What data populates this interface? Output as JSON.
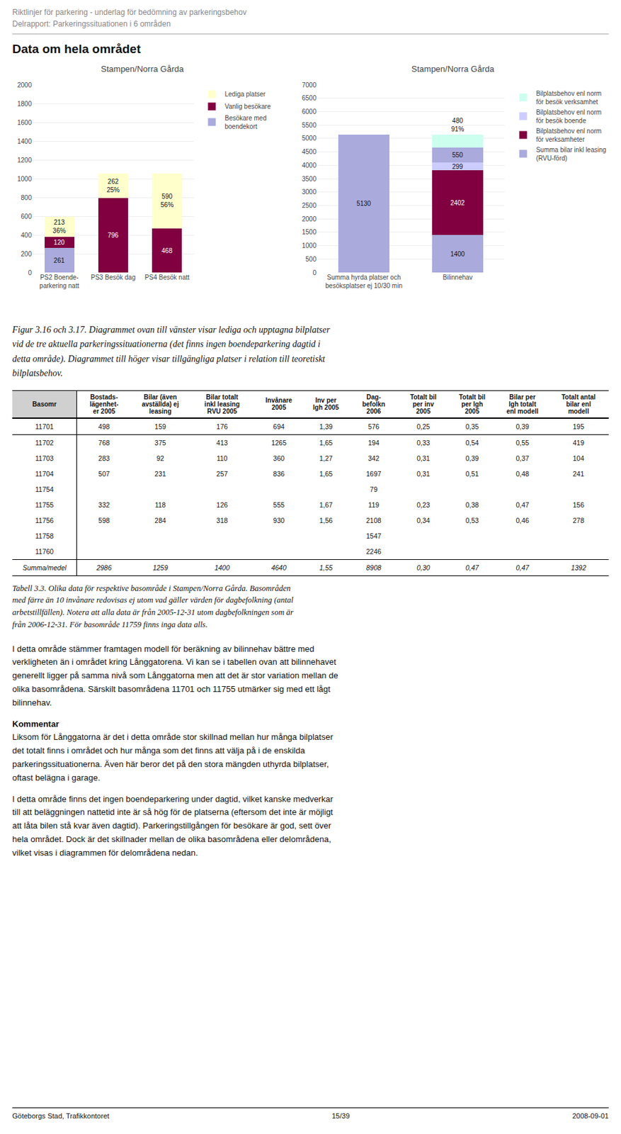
{
  "header_lines": [
    "Riktlinjer för parkering - underlag för bedömning av parkeringsbehov",
    "Delrapport: Parkeringssituationen i 6 områden"
  ],
  "section_title": "Data om hela området",
  "chart_data": [
    {
      "type": "bar",
      "title": "Stampen/Norra Gårda",
      "stacked": true,
      "data_labels": true,
      "grid": true,
      "legend": "right",
      "categories": [
        "PS2 Boende-\nparkering natt",
        "PS3 Besök dag",
        "PS4 Besök natt"
      ],
      "series": [
        {
          "name": "Besökare med\nboendekort",
          "color": "#aaaadd",
          "values": [
            261,
            0,
            0
          ]
        },
        {
          "name": "Vanlig besökare",
          "color": "#800040",
          "values": [
            120,
            796,
            468
          ]
        },
        {
          "name": "Lediga platser",
          "color": "#ffffcc",
          "values": [
            213,
            262,
            590
          ],
          "annotations": [
            "36%",
            "25%",
            "56%"
          ]
        }
      ],
      "ylim": [
        0,
        2000
      ],
      "yticks": [
        0,
        200,
        400,
        600,
        800,
        1000,
        1200,
        1400,
        1600,
        1800,
        2000
      ]
    },
    {
      "type": "bar",
      "title": "Stampen/Norra Gårda",
      "stacked": true,
      "data_labels": true,
      "grid": true,
      "legend": "right",
      "categories": [
        "Summa hyrda platser och\nbesöksplatser ej 10/30 min",
        "Bilinnehav"
      ],
      "series": [
        {
          "name": "Summa bilar inkl leasing\n(RVU-förd)",
          "color": "#aaaadd",
          "values": [
            5130,
            1400
          ]
        },
        {
          "name": "Bilplatsbehov enl norm\nför verksamheter",
          "color": "#800040",
          "values": [
            0,
            2402
          ]
        },
        {
          "name": "Bilplatsbehov enl norm\nför besök boende",
          "color": "#ccccff",
          "values": [
            0,
            299
          ]
        },
        {
          "color": "#aaaadd",
          "values": [
            0,
            550
          ]
        },
        {
          "name": "Bilplatsbehov enl norm\nför besök verksamhet",
          "color": "#ccffee",
          "values": [
            0,
            480
          ],
          "annotations": [
            null,
            "91%"
          ]
        }
      ],
      "ylim": [
        0,
        7000
      ],
      "yticks": [
        0,
        500,
        1000,
        1500,
        2000,
        2500,
        3000,
        3500,
        4000,
        4500,
        5000,
        5500,
        6000,
        6500,
        7000
      ]
    }
  ],
  "caption": "Figur 3.16 och 3.17. Diagrammet ovan till vänster visar lediga och upptagna bilplatser\nvid de tre aktuella parkeringssituationerna (det finns ingen boendeparkering dagtid i\ndetta område). Diagrammet till höger visar tillgängliga platser i relation till teoretiskt\nbilplatsbehov.",
  "table": {
    "headers": [
      "Basomr",
      "Bostads-\nlägenhet-\ner 2005",
      "Bilar (även\navställda) ej\nleasing",
      "Bilar totalt\ninkl leasing\nRVU 2005",
      "Invånare\n2005",
      "Inv per\nlgh 2005",
      "Dag-\nbefolkn\n2006",
      "Totalt bil\nper inv\n2005",
      "Totalt bil\nper lgh\n2005",
      "Bilar per\nlgh totalt\nenl modell",
      "Totalt antal\nbilar enl\nmodell"
    ],
    "rows": [
      [
        "11701",
        "498",
        "159",
        "176",
        "694",
        "1,39",
        "576",
        "0,25",
        "0,35",
        "0,39",
        "195"
      ],
      [
        "11702",
        "768",
        "375",
        "413",
        "1265",
        "1,65",
        "194",
        "0,33",
        "0,54",
        "0,55",
        "419"
      ],
      [
        "11703",
        "283",
        "92",
        "110",
        "360",
        "1,27",
        "342",
        "0,31",
        "0,39",
        "0,37",
        "104"
      ],
      [
        "11704",
        "507",
        "231",
        "257",
        "836",
        "1,65",
        "1697",
        "0,31",
        "0,51",
        "0,48",
        "241"
      ],
      [
        "11754",
        null,
        null,
        null,
        null,
        null,
        "79",
        null,
        null,
        null,
        null
      ],
      [
        "11755",
        "332",
        "118",
        "126",
        "555",
        "1,67",
        "119",
        "0,23",
        "0,38",
        "0,47",
        "156"
      ],
      [
        "11756",
        "598",
        "284",
        "318",
        "930",
        "1,56",
        "2108",
        "0,34",
        "0,53",
        "0,46",
        "278"
      ],
      [
        "11758",
        null,
        null,
        null,
        null,
        null,
        "1547",
        null,
        null,
        null,
        null
      ],
      [
        "11760",
        null,
        null,
        null,
        null,
        null,
        "2246",
        null,
        null,
        null,
        null
      ],
      [
        "Summa/medel",
        "2986",
        "1259",
        "1400",
        "4640",
        "1,55",
        "8908",
        "0,30",
        "0,47",
        "0,47",
        "1392"
      ]
    ]
  },
  "table_caption": "Tabell 3.3. Olika data för respektive basområde i Stampen/Norra Gårda. Basområden\nmed färre än 10 invånare redovisas ej utom vad gäller värden för dagbefolkning (antal\narbetstillfällen). Notera att alla data är från 2005-12-31 utom dagbefolkningen som är\nfrån 2006-12-31. För basområde 11759 finns inga data alls.",
  "body_paragraphs": [
    {
      "text": "I detta område stämmer framtagen modell för beräkning av bilinnehav bättre med\nverkligheten än i området kring Långgatorena. Vi kan se i tabellen ovan att bilinnehavet\ngenerellt ligger på samma nivå som Långgatorna men att det är stor variation mellan de\nolika basområdena. Särskilt basområdena 11701 och 11755 utmärker sig med ett lågt\nbilinnehav."
    },
    {
      "heading": "Kommentar",
      "text": "Liksom för Långgatorna är det i detta område stor skillnad mellan hur många bilplatser\ndet totalt finns i området och hur många som det finns att välja på i de enskilda\nparkeringssituationerna. Även här beror det på den stora mängden uthyrda bilplatser,\noftast belägna i garage."
    },
    {
      "text": "I detta område finns det ingen boendeparkering under dagtid, vilket kanske medverkar\ntill att beläggningen nattetid inte är så hög för de platserna (eftersom det inte är möjligt\natt låta bilen stå kvar även dagtid). Parkeringstillgången för besökare är god, sett över\nhela området. Dock är det skillnader mellan de olika basområdena eller delområdena,\nvilket visas i diagrammen för delområdena nedan."
    }
  ],
  "footer": {
    "left": "Göteborgs Stad, Trafikkontoret",
    "center": "15/39",
    "right": "2008-09-01"
  }
}
